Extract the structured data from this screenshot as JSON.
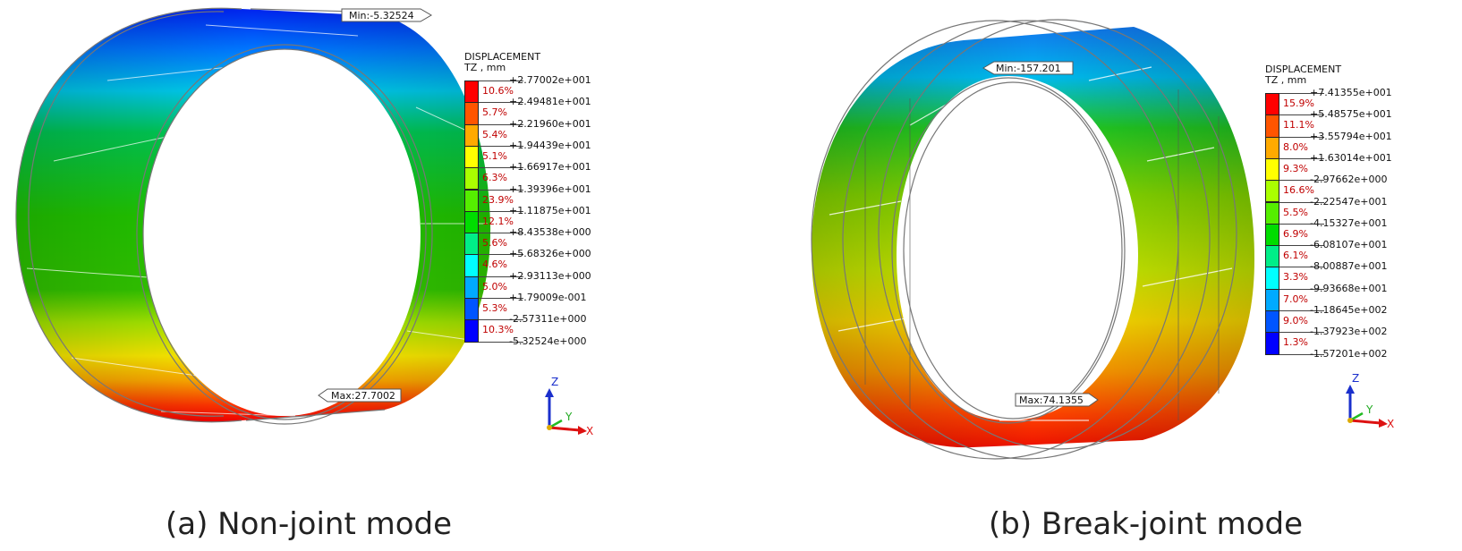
{
  "panels": [
    {
      "caption": "(a) Non-joint mode",
      "min_label": "Min:-5.32524",
      "max_label": "Max:27.7002",
      "legend": {
        "title_line1": "DISPLACEMENT",
        "title_line2": "TZ , mm",
        "bands": [
          {
            "value": "+2.77002e+001",
            "percent": "10.6%",
            "color": "#ff0000"
          },
          {
            "value": "+2.49481e+001",
            "percent": "5.7%",
            "color": "#ff5500"
          },
          {
            "value": "+2.21960e+001",
            "percent": "5.4%",
            "color": "#ffaa00"
          },
          {
            "value": "+1.94439e+001",
            "percent": "5.1%",
            "color": "#ffff00"
          },
          {
            "value": "+1.66917e+001",
            "percent": "6.3%",
            "color": "#aaff00"
          },
          {
            "value": "+1.39396e+001",
            "percent": "23.9%",
            "color": "#55ee00"
          },
          {
            "value": "+1.11875e+001",
            "percent": "12.1%",
            "color": "#00dd00"
          },
          {
            "value": "+8.43538e+000",
            "percent": "5.6%",
            "color": "#00ee88"
          },
          {
            "value": "+5.68326e+000",
            "percent": "4.6%",
            "color": "#00ffff"
          },
          {
            "value": "+2.93113e+000",
            "percent": "5.0%",
            "color": "#00aaff"
          },
          {
            "value": "+1.79009e-001",
            "percent": "5.3%",
            "color": "#0055ff"
          },
          {
            "value": "-2.57311e+000",
            "percent": "10.3%",
            "color": "#0000ff"
          }
        ],
        "last_value": "-5.32524e+000"
      },
      "axes": {
        "z": "Z",
        "y": "Y",
        "x": "X"
      }
    },
    {
      "caption": "(b) Break-joint mode",
      "min_label": "Min:-157.201",
      "max_label": "Max:74.1355",
      "legend": {
        "title_line1": "DISPLACEMENT",
        "title_line2": "TZ , mm",
        "bands": [
          {
            "value": "+7.41355e+001",
            "percent": "15.9%",
            "color": "#ff0000"
          },
          {
            "value": "+5.48575e+001",
            "percent": "11.1%",
            "color": "#ff5500"
          },
          {
            "value": "+3.55794e+001",
            "percent": "8.0%",
            "color": "#ffaa00"
          },
          {
            "value": "+1.63014e+001",
            "percent": "9.3%",
            "color": "#ffff00"
          },
          {
            "value": "-2.97662e+000",
            "percent": "16.6%",
            "color": "#aaff00"
          },
          {
            "value": "-2.22547e+001",
            "percent": "5.5%",
            "color": "#55ee00"
          },
          {
            "value": "-4.15327e+001",
            "percent": "6.9%",
            "color": "#00dd00"
          },
          {
            "value": "-6.08107e+001",
            "percent": "6.1%",
            "color": "#00ee88"
          },
          {
            "value": "-8.00887e+001",
            "percent": "3.3%",
            "color": "#00ffff"
          },
          {
            "value": "-9.93668e+001",
            "percent": "7.0%",
            "color": "#00aaff"
          },
          {
            "value": "-1.18645e+002",
            "percent": "9.0%",
            "color": "#0055ff"
          },
          {
            "value": "-1.37923e+002",
            "percent": "1.3%",
            "color": "#0000ff"
          }
        ],
        "last_value": "-1.57201e+002"
      },
      "axes": {
        "z": "Z",
        "y": "Y",
        "x": "X"
      }
    }
  ]
}
